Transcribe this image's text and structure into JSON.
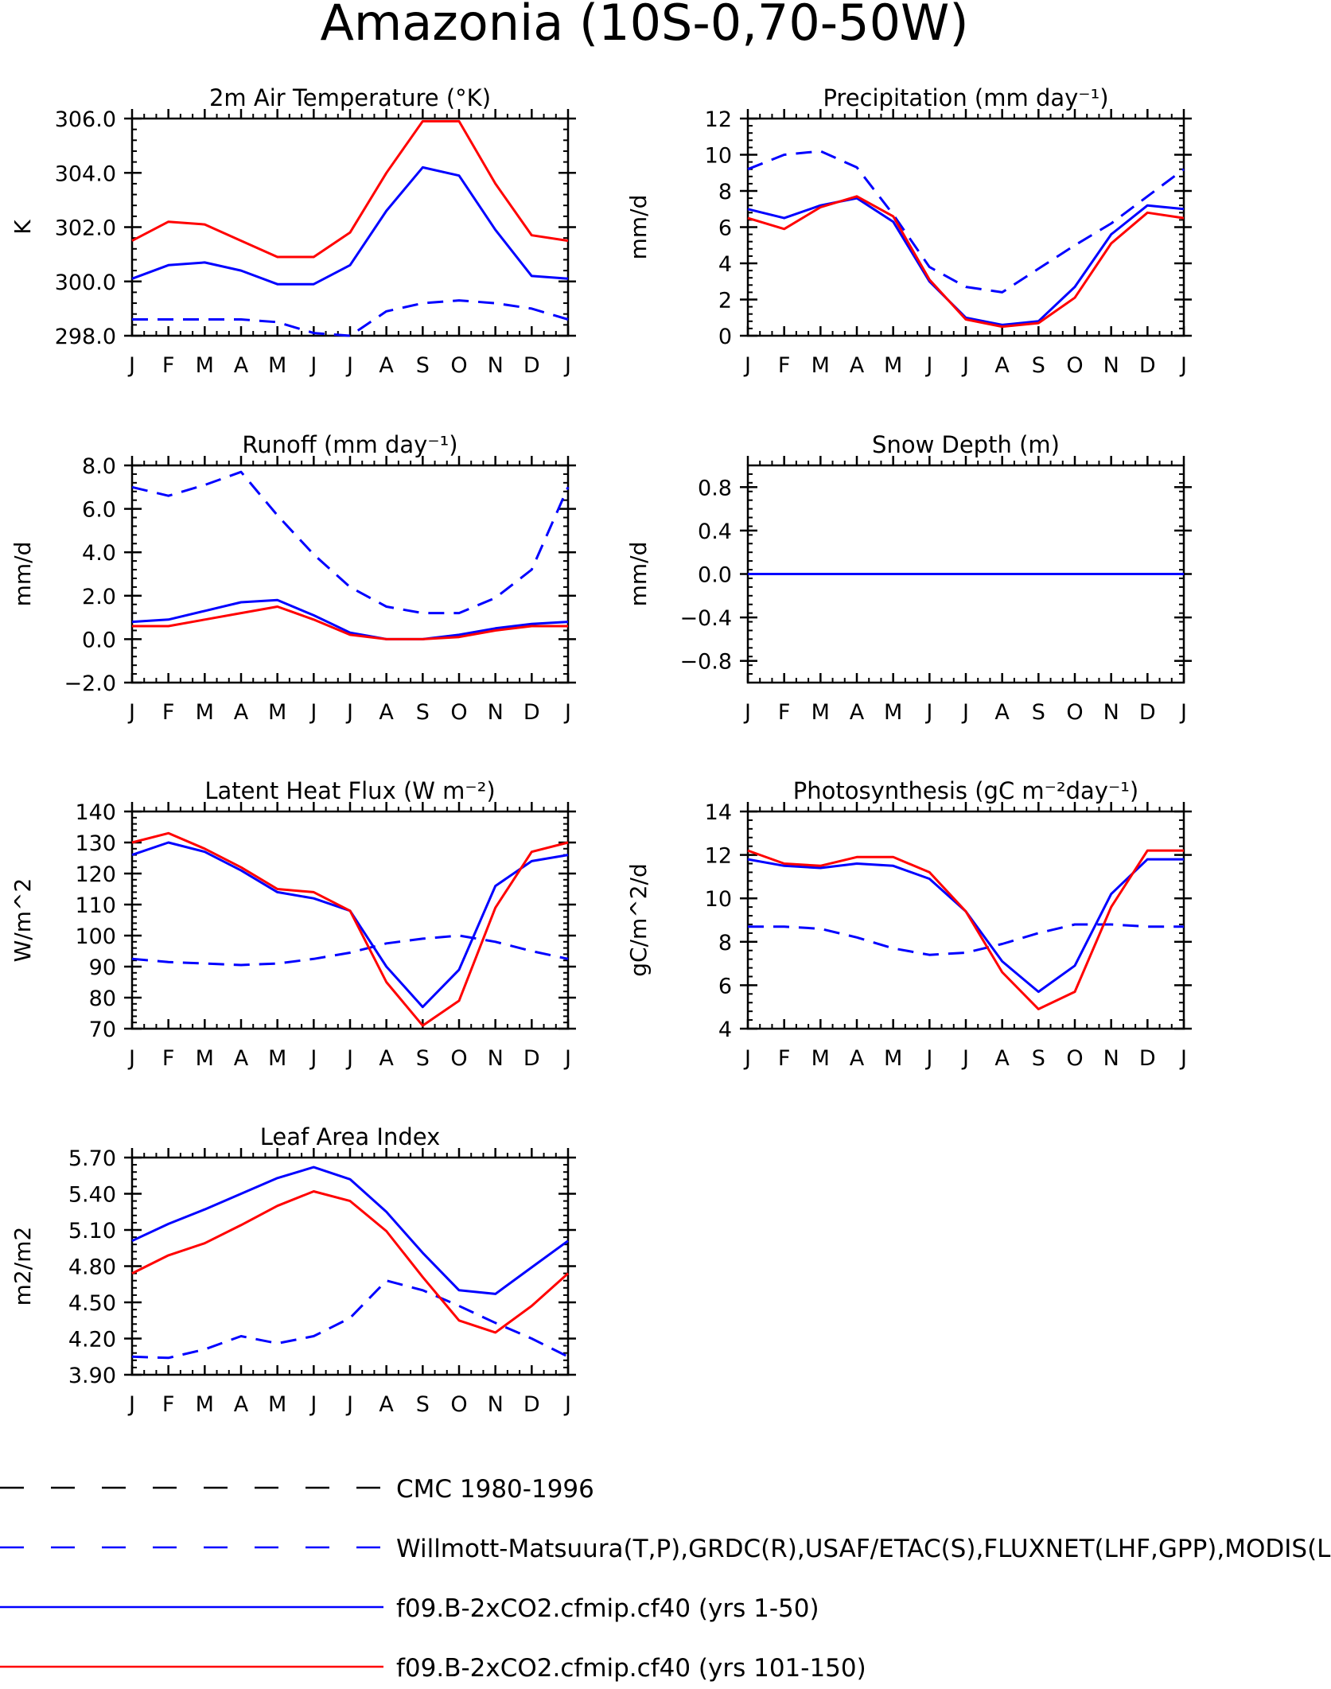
{
  "page": {
    "title": "Amazonia (10S-0,70-50W)"
  },
  "months": [
    "J",
    "F",
    "M",
    "A",
    "M",
    "J",
    "J",
    "A",
    "S",
    "O",
    "N",
    "D",
    "J"
  ],
  "colors": {
    "obs": "#0000ff",
    "model1": "#0000ff",
    "model2": "#ff0000",
    "cmc": "#000000",
    "axis": "#000000"
  },
  "legend": [
    {
      "label": "CMC 1980-1996",
      "color": "#000000",
      "dash": true
    },
    {
      "label": "Willmott-Matsuura(T,P),GRDC(R),USAF/ETAC(S),FLUXNET(LHF,GPP),MODIS(L",
      "color": "#0000ff",
      "dash": true
    },
    {
      "label": "f09.B-2xCO2.cfmip.cf40 (yrs 1-50)",
      "color": "#0000ff",
      "dash": false
    },
    {
      "label": "f09.B-2xCO2.cfmip.cf40 (yrs 101-150)",
      "color": "#ff0000",
      "dash": false
    }
  ],
  "chart_data": [
    {
      "type": "line",
      "title": "2m Air Temperature (°K)",
      "ylabel": "K",
      "ylim": [
        298,
        306
      ],
      "yticks": [
        298,
        300,
        302,
        304,
        306
      ],
      "ytick_labels": [
        "298.0",
        "300.0",
        "302.0",
        "304.0",
        "306.0"
      ],
      "series": [
        {
          "key": "obs",
          "values": [
            298.6,
            298.6,
            298.6,
            298.6,
            298.5,
            298.1,
            298.0,
            298.9,
            299.2,
            299.3,
            299.2,
            299.0,
            298.6
          ]
        },
        {
          "key": "model1",
          "values": [
            300.1,
            300.6,
            300.7,
            300.4,
            299.9,
            299.9,
            300.6,
            302.6,
            304.2,
            303.9,
            301.9,
            300.2,
            300.1
          ]
        },
        {
          "key": "model2",
          "values": [
            301.5,
            302.2,
            302.1,
            301.5,
            300.9,
            300.9,
            301.8,
            304.0,
            305.9,
            305.9,
            303.6,
            301.7,
            301.5
          ]
        }
      ]
    },
    {
      "type": "line",
      "title": "Precipitation (mm day⁻¹)",
      "ylabel": "mm/d",
      "ylim": [
        0,
        12
      ],
      "yticks": [
        0,
        2,
        4,
        6,
        8,
        10,
        12
      ],
      "ytick_labels": [
        "0",
        "2",
        "4",
        "6",
        "8",
        "10",
        "12"
      ],
      "series": [
        {
          "key": "obs",
          "values": [
            9.2,
            10.0,
            10.2,
            9.3,
            6.7,
            3.8,
            2.7,
            2.4,
            3.7,
            5.0,
            6.2,
            7.7,
            9.2
          ]
        },
        {
          "key": "model1",
          "values": [
            7.0,
            6.5,
            7.2,
            7.6,
            6.3,
            3.0,
            1.0,
            0.6,
            0.8,
            2.7,
            5.6,
            7.2,
            7.0
          ]
        },
        {
          "key": "model2",
          "values": [
            6.5,
            5.9,
            7.1,
            7.7,
            6.6,
            3.1,
            0.9,
            0.5,
            0.7,
            2.1,
            5.1,
            6.8,
            6.5
          ]
        }
      ]
    },
    {
      "type": "line",
      "title": "Runoff (mm day⁻¹)",
      "ylabel": "mm/d",
      "ylim": [
        -2,
        8
      ],
      "yticks": [
        -2,
        0,
        2,
        4,
        6,
        8
      ],
      "ytick_labels": [
        "−2.0",
        "0.0",
        "2.0",
        "4.0",
        "6.0",
        "8.0"
      ],
      "series": [
        {
          "key": "obs",
          "values": [
            7.0,
            6.6,
            7.1,
            7.7,
            5.7,
            3.9,
            2.4,
            1.5,
            1.2,
            1.2,
            1.9,
            3.2,
            7.0
          ]
        },
        {
          "key": "model1",
          "values": [
            0.8,
            0.9,
            1.3,
            1.7,
            1.8,
            1.1,
            0.3,
            0.0,
            0.0,
            0.2,
            0.5,
            0.7,
            0.8
          ]
        },
        {
          "key": "model2",
          "values": [
            0.6,
            0.6,
            0.9,
            1.2,
            1.5,
            0.9,
            0.2,
            0.0,
            0.0,
            0.1,
            0.4,
            0.6,
            0.6
          ]
        }
      ]
    },
    {
      "type": "line",
      "title": "Snow Depth (m)",
      "ylabel": "mm/d",
      "ylim": [
        -1,
        1
      ],
      "yticks": [
        -0.8,
        -0.4,
        0,
        0.4,
        0.8
      ],
      "ytick_labels": [
        "−0.8",
        "−0.4",
        "0.0",
        "0.4",
        "0.8"
      ],
      "series": [
        {
          "key": "model2",
          "values": [
            0,
            0,
            0,
            0,
            0,
            0,
            0,
            0,
            0,
            0,
            0,
            0,
            0
          ]
        },
        {
          "key": "model1",
          "values": [
            0,
            0,
            0,
            0,
            0,
            0,
            0,
            0,
            0,
            0,
            0,
            0,
            0
          ]
        },
        {
          "key": "obs",
          "values": [
            0,
            0,
            0,
            0,
            0,
            0,
            0,
            0,
            0,
            0,
            0,
            0,
            0
          ]
        }
      ]
    },
    {
      "type": "line",
      "title": "Latent Heat Flux (W m⁻²)",
      "ylabel": "W/m^2",
      "ylim": [
        70,
        140
      ],
      "yticks": [
        70,
        80,
        90,
        100,
        110,
        120,
        130,
        140
      ],
      "ytick_labels": [
        "70",
        "80",
        "90",
        "100",
        "110",
        "120",
        "130",
        "140"
      ],
      "series": [
        {
          "key": "obs",
          "values": [
            92.5,
            91.5,
            91.0,
            90.5,
            91.0,
            92.5,
            94.5,
            97.5,
            99.0,
            100.0,
            98.0,
            95.0,
            92.5
          ]
        },
        {
          "key": "model1",
          "values": [
            126,
            130,
            127,
            121,
            114,
            112,
            108,
            90,
            77,
            89,
            116,
            124,
            126
          ]
        },
        {
          "key": "model2",
          "values": [
            130,
            133,
            128,
            122,
            115,
            114,
            108,
            85,
            71,
            79,
            109,
            127,
            130
          ]
        }
      ]
    },
    {
      "type": "line",
      "title": "Photosynthesis (gC m⁻²day⁻¹)",
      "ylabel": "gC/m^2/d",
      "ylim": [
        4,
        14
      ],
      "yticks": [
        4,
        6,
        8,
        10,
        12,
        14
      ],
      "ytick_labels": [
        "4",
        "6",
        "8",
        "10",
        "12",
        "14"
      ],
      "series": [
        {
          "key": "obs",
          "values": [
            8.7,
            8.7,
            8.6,
            8.2,
            7.7,
            7.4,
            7.5,
            7.9,
            8.4,
            8.8,
            8.8,
            8.7,
            8.7
          ]
        },
        {
          "key": "model1",
          "values": [
            11.8,
            11.5,
            11.4,
            11.6,
            11.5,
            10.9,
            9.4,
            7.1,
            5.7,
            6.9,
            10.2,
            11.8,
            11.8
          ]
        },
        {
          "key": "model2",
          "values": [
            12.2,
            11.6,
            11.5,
            11.9,
            11.9,
            11.2,
            9.4,
            6.6,
            4.9,
            5.7,
            9.6,
            12.2,
            12.2
          ]
        }
      ]
    },
    {
      "type": "line",
      "title": "Leaf Area Index",
      "ylabel": "m2/m2",
      "ylim": [
        3.9,
        5.7
      ],
      "yticks": [
        3.9,
        4.2,
        4.5,
        4.8,
        5.1,
        5.4,
        5.7
      ],
      "ytick_labels": [
        "3.90",
        "4.20",
        "4.50",
        "4.80",
        "5.10",
        "5.40",
        "5.70"
      ],
      "series": [
        {
          "key": "obs",
          "values": [
            4.05,
            4.04,
            4.11,
            4.22,
            4.16,
            4.22,
            4.37,
            4.68,
            4.6,
            4.47,
            4.33,
            4.2,
            4.05
          ]
        },
        {
          "key": "model1",
          "values": [
            5.01,
            5.15,
            5.27,
            5.4,
            5.53,
            5.62,
            5.52,
            5.25,
            4.91,
            4.6,
            4.57,
            4.79,
            5.01
          ]
        },
        {
          "key": "model2",
          "values": [
            4.74,
            4.89,
            4.99,
            5.14,
            5.3,
            5.42,
            5.34,
            5.09,
            4.71,
            4.35,
            4.25,
            4.47,
            4.74
          ]
        }
      ]
    }
  ]
}
